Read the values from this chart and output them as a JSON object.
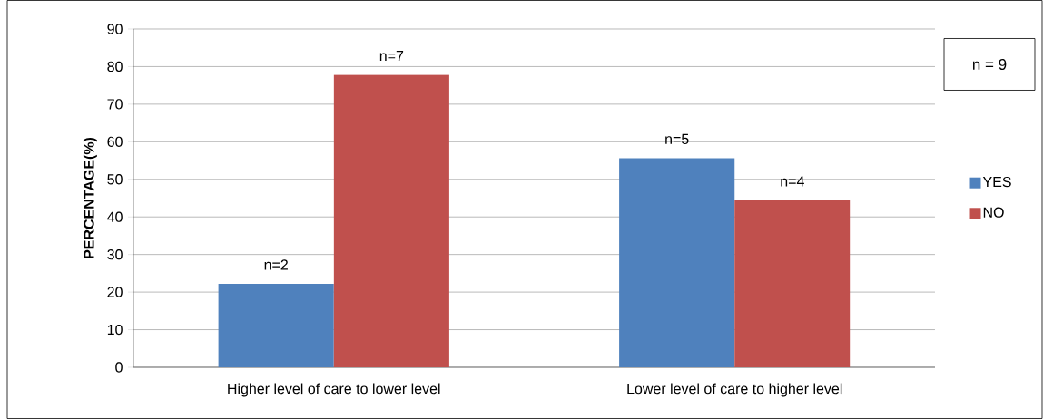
{
  "chart_data": {
    "type": "bar",
    "categories": [
      "Higher level of care to lower level",
      "Lower level of care to higher level"
    ],
    "series": [
      {
        "name": "YES",
        "color": "#4f81bd",
        "values": [
          22.2,
          55.6
        ]
      },
      {
        "name": "NO",
        "color": "#c0504d",
        "values": [
          77.8,
          44.4
        ]
      }
    ],
    "ylabel": "PERCENTAGE(%)",
    "ylim": [
      0,
      90
    ],
    "yticks": [
      0,
      10,
      20,
      30,
      40,
      50,
      60,
      70,
      80,
      90
    ],
    "grid": "y",
    "legend": "right",
    "annotations": [
      "n = 9",
      "n=2",
      "n=7",
      "n=5",
      "n=4"
    ]
  }
}
